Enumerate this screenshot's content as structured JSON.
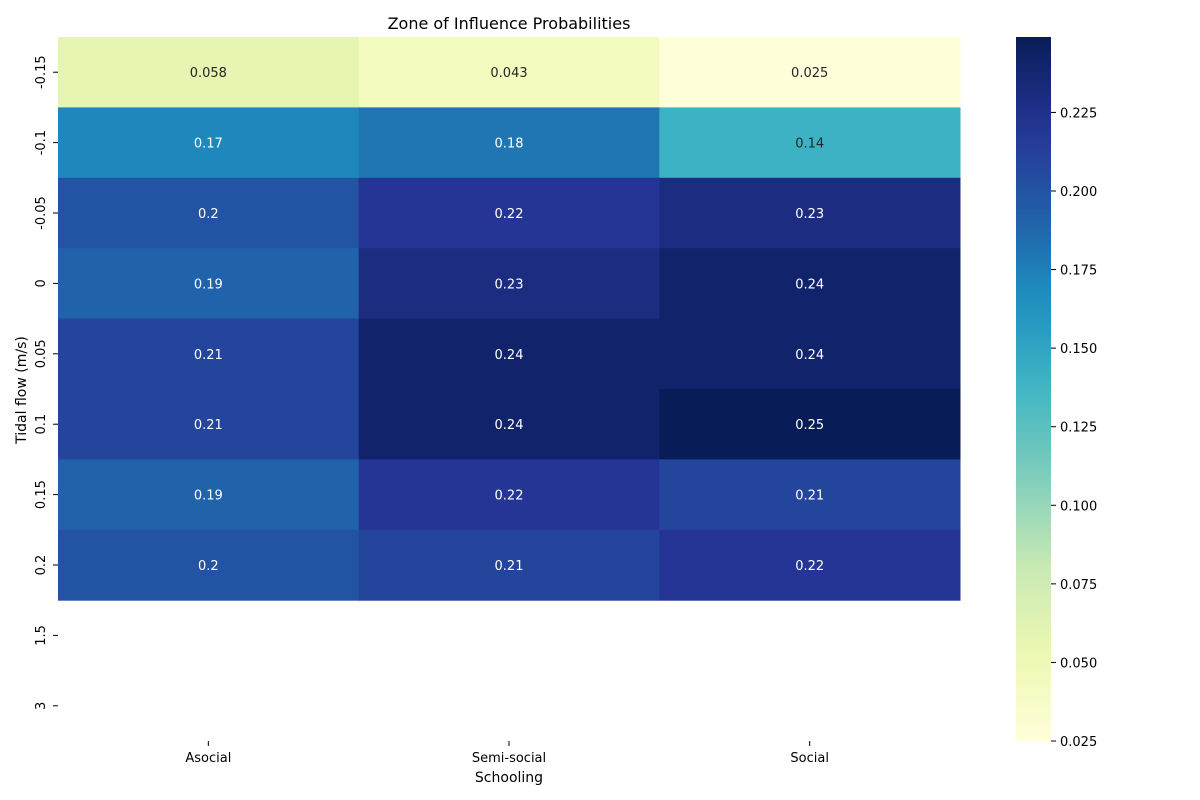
{
  "chart_data": {
    "type": "heatmap",
    "title": "Zone of Influence Probabilities",
    "xlabel": "Schooling",
    "ylabel": "Tidal flow (m/s)",
    "x_categories": [
      "Asocial",
      "Semi-social",
      "Social"
    ],
    "y_categories": [
      "-0.15",
      "-0.1",
      "-0.05",
      "0",
      "0.05",
      "0.1",
      "0.15",
      "0.2",
      "1.5",
      "3"
    ],
    "values": [
      [
        0.058,
        0.043,
        0.025
      ],
      [
        0.17,
        0.18,
        0.14
      ],
      [
        0.2,
        0.22,
        0.23
      ],
      [
        0.19,
        0.23,
        0.24
      ],
      [
        0.21,
        0.24,
        0.24
      ],
      [
        0.21,
        0.24,
        0.25
      ],
      [
        0.19,
        0.22,
        0.21
      ],
      [
        0.2,
        0.21,
        0.22
      ],
      [
        null,
        null,
        null
      ],
      [
        null,
        null,
        null
      ]
    ],
    "annotations": [
      [
        "0.058",
        "0.043",
        "0.025"
      ],
      [
        "0.17",
        "0.18",
        "0.14"
      ],
      [
        "0.2",
        "0.22",
        "0.23"
      ],
      [
        "0.19",
        "0.23",
        "0.24"
      ],
      [
        "0.21",
        "0.24",
        "0.24"
      ],
      [
        "0.21",
        "0.24",
        "0.25"
      ],
      [
        "0.19",
        "0.22",
        "0.21"
      ],
      [
        "0.2",
        "0.21",
        "0.22"
      ],
      [
        "",
        "",
        ""
      ],
      [
        "",
        "",
        ""
      ]
    ],
    "colorbar": {
      "min": 0.025,
      "max": 0.249,
      "ticks": [
        "0.025",
        "0.050",
        "0.075",
        "0.100",
        "0.125",
        "0.150",
        "0.175",
        "0.200",
        "0.225"
      ],
      "colormap": "YlGnBu",
      "colors": [
        "#ffffd9",
        "#edf8b1",
        "#c7e9b4",
        "#7fcdbb",
        "#41b6c4",
        "#1d91c0",
        "#225ea8",
        "#253494",
        "#081d58"
      ]
    },
    "grid": false,
    "legend": "colorbar-right"
  }
}
